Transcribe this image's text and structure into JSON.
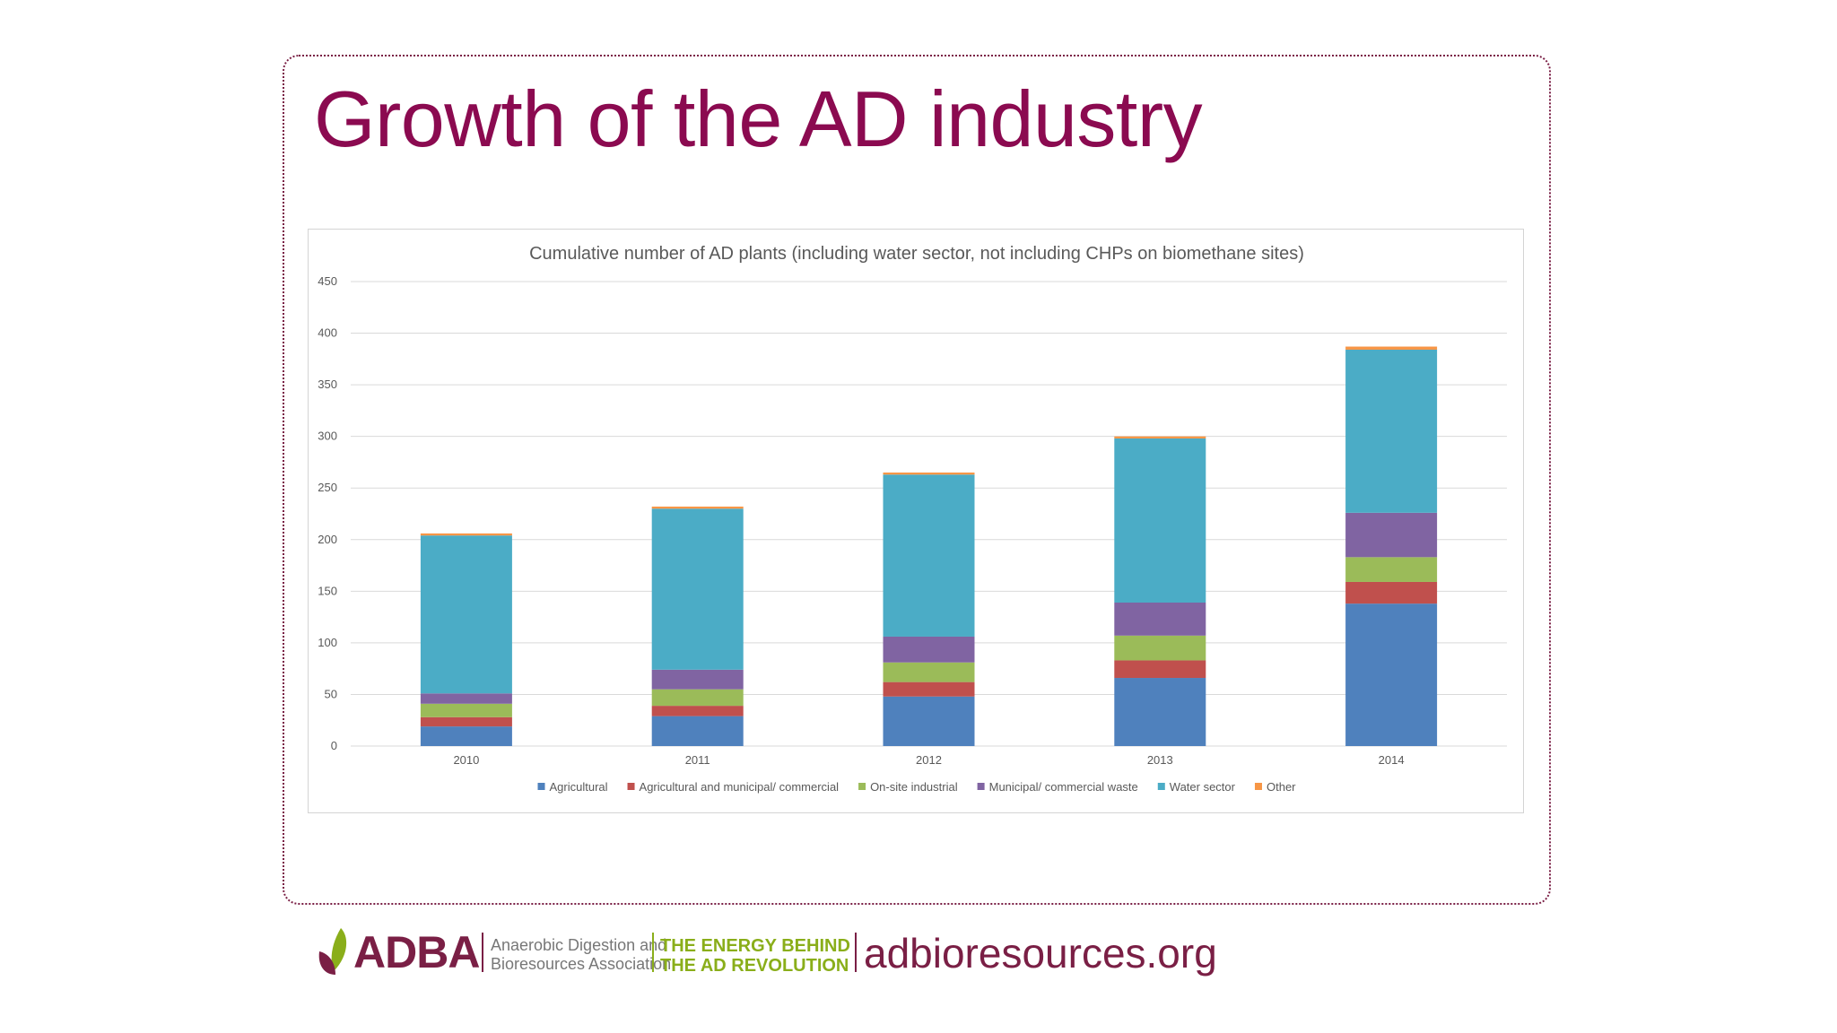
{
  "slide": {
    "title": "Growth of the AD industry"
  },
  "chart_data": {
    "type": "bar",
    "stacked": true,
    "title": "Cumulative number of AD plants (including water sector, not including CHPs on biomethane sites)",
    "categories": [
      "2010",
      "2011",
      "2012",
      "2013",
      "2014"
    ],
    "ylim": [
      0,
      450
    ],
    "yticks": [
      0,
      50,
      100,
      150,
      200,
      250,
      300,
      350,
      400,
      450
    ],
    "grid": true,
    "legend_position": "bottom",
    "series": [
      {
        "name": "Agricultural",
        "color": "#4f81bd",
        "values": [
          19,
          29,
          48,
          66,
          138
        ]
      },
      {
        "name": "Agricultural and municipal/ commercial",
        "color": "#c0504d",
        "values": [
          9,
          10,
          14,
          17,
          21
        ]
      },
      {
        "name": "On-site industrial",
        "color": "#9bbb59",
        "values": [
          13,
          16,
          19,
          24,
          24
        ]
      },
      {
        "name": "Municipal/ commercial waste",
        "color": "#8064a2",
        "values": [
          10,
          19,
          25,
          32,
          43
        ]
      },
      {
        "name": "Water sector",
        "color": "#4bacc6",
        "values": [
          153,
          156,
          157,
          159,
          158
        ]
      },
      {
        "name": "Other",
        "color": "#f79646",
        "values": [
          2,
          2,
          2,
          2,
          3
        ]
      }
    ]
  },
  "footer": {
    "brand": "ADBA",
    "association_line1": "Anaerobic Digestion and",
    "association_line2": "Bioresources Association",
    "tagline_line1": "THE ENERGY BEHIND",
    "tagline_line2": "THE AD REVOLUTION",
    "website": "adbioresources.org",
    "brand_color": "#7a1f45",
    "tagline_color": "#8aae1a"
  }
}
